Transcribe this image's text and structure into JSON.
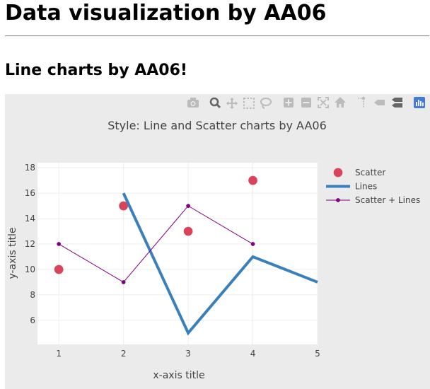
{
  "page": {
    "heading": "Data visualization by AA06",
    "subheading": "Line charts by AA06!"
  },
  "modebar": {
    "icons": [
      "camera-icon",
      "zoom-icon",
      "pan-icon",
      "box-select-icon",
      "lasso-select-icon",
      "zoom-in-icon",
      "zoom-out-icon",
      "autoscale-icon",
      "reset-axes-icon",
      "spike-lines-icon",
      "hover-closest-icon",
      "hover-compare-icon",
      "plotly-logo-icon"
    ]
  },
  "colors": {
    "scatter": "#d9445a",
    "lines": "#3a80bb",
    "scatter_lines": "#800080",
    "plot_bg": "#ffffff",
    "paper_bg": "#ebebeb"
  },
  "chart_data": {
    "type": "line",
    "title": "Style: Line and Scatter charts by AA06",
    "xlabel": "x-axis title",
    "ylabel": "y-axis title",
    "xlim": [
      0.67,
      5
    ],
    "ylim": [
      4.1,
      18.4
    ],
    "xticks": [
      1,
      2,
      3,
      4,
      5
    ],
    "yticks": [
      6,
      8,
      10,
      12,
      14,
      16,
      18
    ],
    "grid": true,
    "legend_position": "right",
    "series": [
      {
        "name": "Scatter",
        "mode": "markers",
        "x": [
          1,
          2,
          3,
          4
        ],
        "y": [
          10,
          15,
          13,
          17
        ]
      },
      {
        "name": "Lines",
        "mode": "lines",
        "x": [
          2,
          3,
          4,
          5
        ],
        "y": [
          16,
          5,
          11,
          9
        ]
      },
      {
        "name": "Scatter + Lines",
        "mode": "lines+markers",
        "x": [
          1,
          2,
          3,
          4
        ],
        "y": [
          12,
          9,
          15,
          12
        ]
      }
    ]
  }
}
